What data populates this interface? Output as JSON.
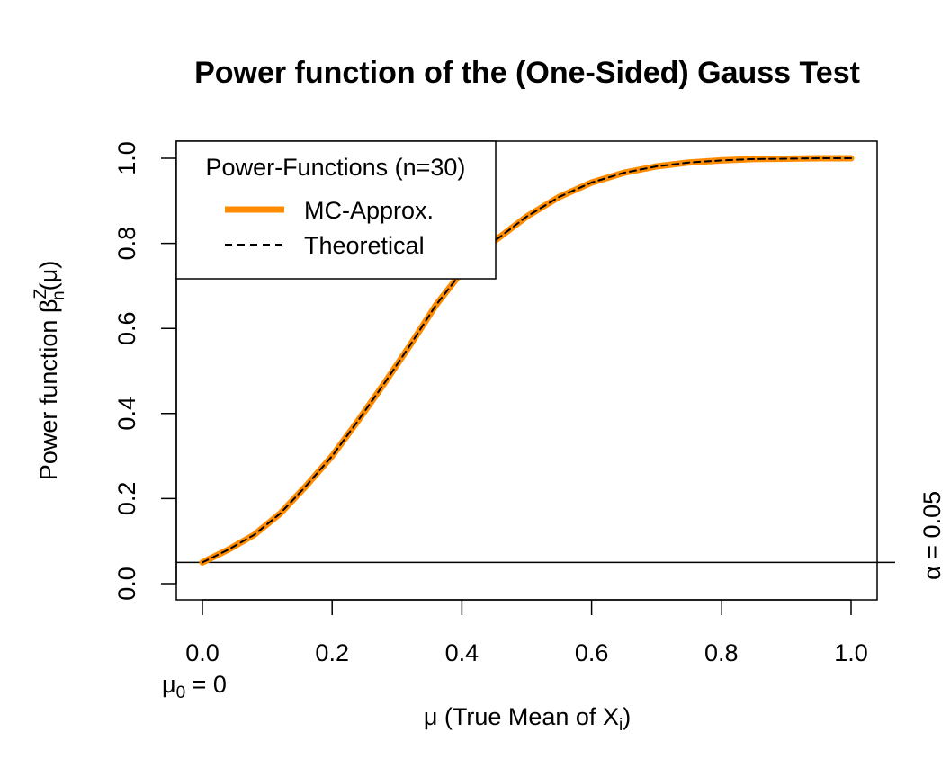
{
  "chart_data": {
    "type": "line",
    "title": "Power function of the (One-Sided) Gauss Test",
    "xlabel": "μ (True Mean of X",
    "xlabel_sub": "i",
    "xlabel_end": ")",
    "ylabel": "Power function β",
    "ylabel_sup": "Z",
    "ylabel_sub": "n",
    "ylabel_end": "(μ)",
    "xlim": [
      0,
      1
    ],
    "ylim": [
      0,
      1
    ],
    "x_ticks": [
      "0.0",
      "0.2",
      "0.4",
      "0.6",
      "0.8",
      "1.0"
    ],
    "y_ticks": [
      "0.0",
      "0.2",
      "0.4",
      "0.6",
      "0.8",
      "1.0"
    ],
    "grid": false,
    "legend": {
      "title": "Power-Functions (n=30)",
      "position": "top-left",
      "entries": [
        {
          "label": "MC-Approx.",
          "color": "#FF8C00",
          "style": "solid-thick"
        },
        {
          "label": "Theoretical",
          "color": "#000000",
          "style": "dashed"
        }
      ]
    },
    "reference_line": {
      "y": 0.05,
      "label": "α = 0.05"
    },
    "mu0_annotation": {
      "text_main": "μ",
      "text_sub": "0",
      "text_end": " = 0"
    },
    "series": [
      {
        "name": "MC-Approx.",
        "color": "#FF8C00",
        "x": [
          0.0,
          0.04,
          0.08,
          0.12,
          0.16,
          0.2,
          0.24,
          0.28,
          0.32,
          0.36,
          0.4,
          0.45,
          0.5,
          0.55,
          0.6,
          0.65,
          0.7,
          0.75,
          0.8,
          0.85,
          0.9,
          0.95,
          1.0
        ],
        "values": [
          0.05,
          0.08,
          0.115,
          0.165,
          0.23,
          0.3,
          0.383,
          0.47,
          0.56,
          0.655,
          0.733,
          0.805,
          0.863,
          0.909,
          0.943,
          0.966,
          0.981,
          0.99,
          0.995,
          0.998,
          0.999,
          1.0,
          1.0
        ]
      },
      {
        "name": "Theoretical",
        "color": "#000000",
        "x": [
          0.0,
          0.04,
          0.08,
          0.12,
          0.16,
          0.2,
          0.24,
          0.28,
          0.32,
          0.36,
          0.4,
          0.45,
          0.5,
          0.55,
          0.6,
          0.65,
          0.7,
          0.75,
          0.8,
          0.85,
          0.9,
          0.95,
          1.0
        ],
        "values": [
          0.05,
          0.08,
          0.115,
          0.165,
          0.23,
          0.3,
          0.383,
          0.47,
          0.56,
          0.655,
          0.733,
          0.805,
          0.863,
          0.909,
          0.943,
          0.966,
          0.981,
          0.99,
          0.995,
          0.998,
          0.999,
          1.0,
          1.0
        ]
      }
    ]
  }
}
